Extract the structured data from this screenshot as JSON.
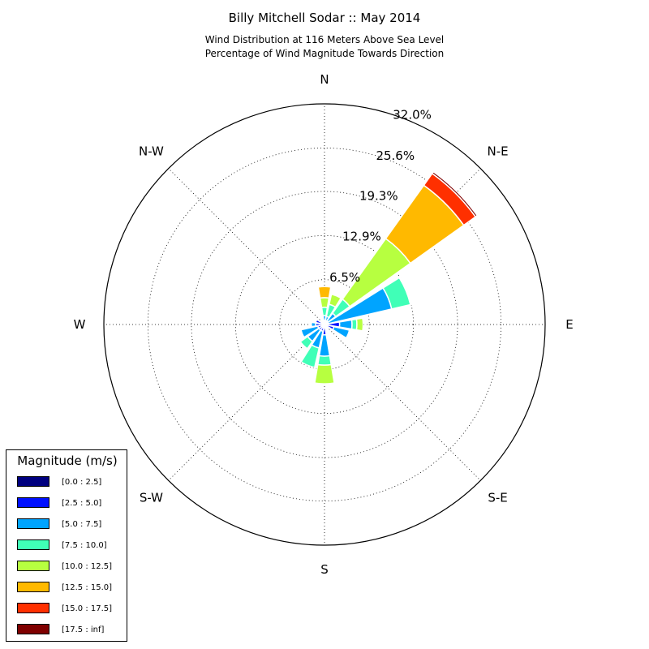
{
  "title": "Billy Mitchell Sodar :: May 2014",
  "subtitle_line1": "Wind Distribution at 116 Meters Above Sea Level",
  "subtitle_line2": "Percentage of Wind Magnitude Towards Direction",
  "chart_data": {
    "type": "windrose",
    "title": "Billy Mitchell Sodar :: May 2014",
    "subtitle": "Wind Distribution at 116 Meters Above Sea Level / Percentage of Wind Magnitude Towards Direction",
    "direction_labels": [
      "N",
      "N-E",
      "E",
      "S-E",
      "S",
      "S-W",
      "W",
      "N-W"
    ],
    "radial_ticks": [
      "6.5%",
      "12.9%",
      "19.3%",
      "25.6%",
      "32.0%"
    ],
    "radial_tick_values": [
      6.5,
      12.9,
      19.3,
      25.6,
      32.0
    ],
    "rmax": 32.0,
    "directions_deg": [
      0,
      22.5,
      45,
      67.5,
      90,
      112.5,
      135,
      157.5,
      180,
      202.5,
      225,
      247.5,
      270,
      292.5,
      315,
      337.5
    ],
    "legend_title": "Magnitude (m/s)",
    "bins": [
      {
        "label": "[0.0 : 2.5]",
        "color": "#00007f"
      },
      {
        "label": "[2.5 : 5.0]",
        "color": "#0010ff"
      },
      {
        "label": "[5.0 : 7.5]",
        "color": "#00a4ff"
      },
      {
        "label": "[7.5 : 10.0]",
        "color": "#40ffb7"
      },
      {
        "label": "[10.0 : 12.5]",
        "color": "#b7ff40"
      },
      {
        "label": "[12.5 : 15.0]",
        "color": "#ffb900"
      },
      {
        "label": "[15.0 : 17.5]",
        "color": "#ff3000"
      },
      {
        "label": "[17.5 : inf]",
        "color": "#7f0000"
      }
    ],
    "cumulative": [
      [
        0.3,
        0.6,
        1.3,
        2.5,
        3.9,
        5.5,
        5.5,
        5.5
      ],
      [
        0.3,
        0.6,
        1.2,
        3.0,
        4.5,
        4.5,
        4.5,
        4.5
      ],
      [
        0.3,
        0.6,
        2.0,
        4.5,
        15.3,
        24.8,
        26.9,
        27.2
      ],
      [
        0.3,
        0.6,
        10.0,
        12.8,
        12.8,
        12.9,
        12.9,
        12.9
      ],
      [
        0.3,
        2.2,
        4.0,
        4.7,
        5.6,
        5.6,
        5.6,
        5.6
      ],
      [
        0.3,
        1.4,
        3.7,
        3.7,
        3.7,
        3.7,
        3.7,
        3.7
      ],
      [
        0.3,
        0.6,
        0.6,
        0.6,
        0.6,
        0.6,
        0.6,
        0.6
      ],
      [
        0.3,
        0.6,
        0.6,
        0.6,
        0.6,
        0.6,
        0.6,
        0.6
      ],
      [
        0.3,
        1.5,
        4.6,
        5.9,
        8.6,
        8.6,
        8.6,
        8.6
      ],
      [
        0.3,
        1.0,
        3.5,
        6.4,
        6.4,
        6.4,
        6.4,
        6.4
      ],
      [
        0.3,
        1.0,
        3.0,
        4.3,
        4.3,
        4.3,
        4.3,
        4.3
      ],
      [
        0.3,
        1.0,
        3.5,
        3.5,
        3.5,
        3.5,
        3.5,
        3.5
      ],
      [
        0.3,
        1.3,
        1.9,
        1.9,
        1.9,
        1.9,
        1.9,
        1.9
      ],
      [
        0.3,
        1.3,
        1.3,
        1.3,
        1.3,
        1.3,
        1.3,
        1.3
      ],
      [
        0.3,
        0.6,
        0.6,
        0.6,
        0.6,
        0.6,
        0.6,
        0.6
      ],
      [
        0.3,
        0.6,
        0.6,
        0.6,
        0.6,
        0.6,
        0.6,
        0.6
      ]
    ]
  }
}
